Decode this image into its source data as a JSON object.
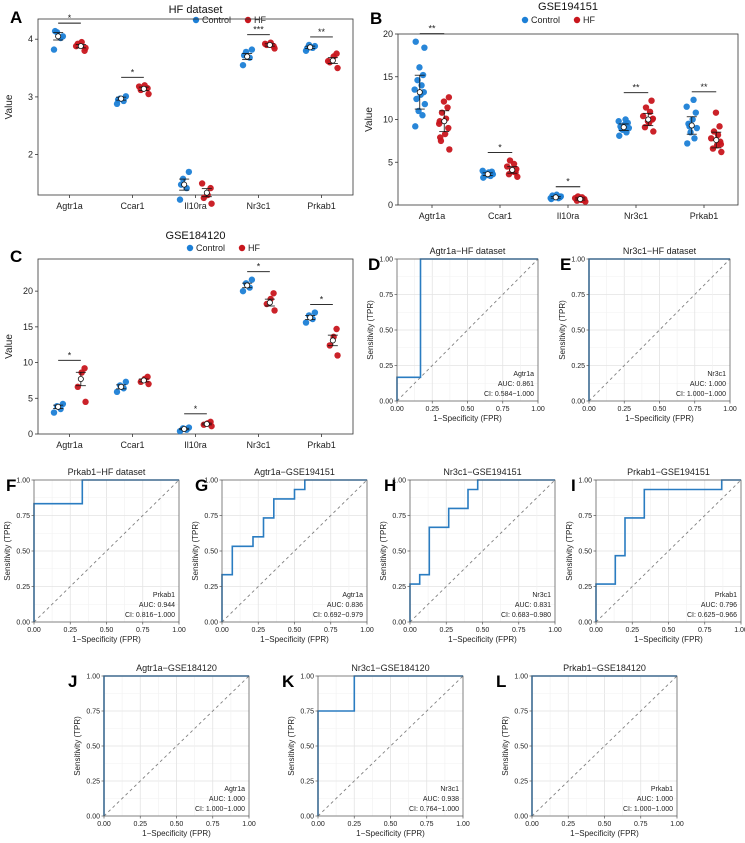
{
  "colors": {
    "control": "#1c7fd6",
    "hf": "#c8161d",
    "roc": "#2a7cc1",
    "diag": "#808080"
  },
  "chart_data": [
    {
      "id": "A",
      "type": "scatter",
      "title": "HF dataset",
      "legend": {
        "control": "Control",
        "hf": "HF"
      },
      "ylabel": "Value",
      "ylim": [
        1.3,
        4.35
      ],
      "yticks": [
        2,
        3,
        4
      ],
      "categories": [
        "Agtr1a",
        "Ccar1",
        "Il10ra",
        "Nr3c1",
        "Prkab1"
      ],
      "series": [
        {
          "name": "Control",
          "points": [
            [
              3.82,
              4.02,
              4.12,
              4.05,
              4.14
            ],
            [
              2.88,
              2.93,
              2.97,
              3.01,
              2.95
            ],
            [
              1.22,
              1.42,
              1.58,
              1.7,
              1.48
            ],
            [
              3.55,
              3.68,
              3.78,
              3.82,
              3.72
            ],
            [
              3.8,
              3.85,
              3.9,
              3.88,
              3.84
            ]
          ],
          "mean": [
            4.05,
            2.97,
            1.48,
            3.7,
            3.86
          ]
        },
        {
          "name": "HF",
          "points": [
            [
              3.85,
              3.92,
              3.95,
              3.8,
              3.88
            ],
            [
              3.05,
              3.12,
              3.2,
              3.15,
              3.18
            ],
            [
              1.15,
              1.25,
              1.3,
              1.42,
              1.5
            ],
            [
              3.84,
              3.9,
              3.94,
              3.88,
              3.92
            ],
            [
              3.5,
              3.6,
              3.7,
              3.75,
              3.62
            ]
          ],
          "mean": [
            3.88,
            3.14,
            1.34,
            3.9,
            3.63
          ]
        }
      ],
      "significance": [
        "*",
        "*",
        "",
        "***",
        "**"
      ]
    },
    {
      "id": "B",
      "type": "scatter",
      "title": "GSE194151",
      "legend": {
        "control": "Control",
        "hf": "HF"
      },
      "ylabel": "Value",
      "ylim": [
        0,
        20
      ],
      "yticks": [
        0,
        5,
        10,
        15,
        20
      ],
      "categories": [
        "Agtr1a",
        "Ccar1",
        "Il10ra",
        "Nr3c1",
        "Prkab1"
      ],
      "series": [
        {
          "name": "Control",
          "points": [
            [
              9.2,
              10.5,
              11.0,
              11.8,
              12.4,
              12.9,
              13.2,
              13.5,
              14.0,
              14.6,
              15.2,
              16.1,
              18.4,
              19.1
            ],
            [
              3.2,
              3.4,
              3.5,
              3.6,
              3.7,
              3.8,
              3.9,
              4.0
            ],
            [
              0.7,
              0.8,
              0.9,
              1.0,
              1.1,
              1.2,
              0.9,
              0.8
            ],
            [
              8.1,
              8.5,
              8.8,
              9.0,
              9.2,
              9.4,
              9.6,
              9.8,
              10.0,
              8.9
            ],
            [
              7.2,
              7.8,
              8.5,
              9.0,
              9.5,
              10.0,
              10.8,
              11.5,
              12.3,
              9.2
            ]
          ],
          "mean": [
            13.2,
            3.6,
            0.9,
            9.1,
            9.3
          ]
        },
        {
          "name": "HF",
          "points": [
            [
              6.5,
              7.5,
              8.3,
              9.0,
              9.5,
              10.1,
              10.8,
              11.4,
              12.1,
              12.6,
              7.9,
              9.8
            ],
            [
              3.3,
              3.6,
              3.9,
              4.2,
              4.5,
              4.8,
              5.2,
              3.8,
              4.1
            ],
            [
              0.4,
              0.5,
              0.6,
              0.7,
              0.8,
              0.9,
              1.0,
              0.6
            ],
            [
              8.6,
              9.1,
              9.6,
              10.0,
              10.4,
              10.9,
              11.4,
              12.2,
              9.8,
              10.1
            ],
            [
              6.2,
              6.6,
              7.0,
              7.4,
              7.8,
              8.2,
              8.6,
              9.2,
              10.8,
              7.1
            ]
          ],
          "mean": [
            9.8,
            4.1,
            0.7,
            10.0,
            7.6
          ]
        }
      ],
      "significance": [
        "**",
        "*",
        "*",
        "**",
        "**"
      ]
    },
    {
      "id": "C",
      "type": "scatter",
      "title": "GSE184120",
      "legend": {
        "control": "Control",
        "hf": "HF"
      },
      "ylabel": "Value",
      "ylim": [
        0,
        24.5
      ],
      "yticks": [
        0,
        5,
        10,
        15,
        20
      ],
      "categories": [
        "Agtr1a",
        "Ccar1",
        "Il10ra",
        "Nr3c1",
        "Prkab1"
      ],
      "series": [
        {
          "name": "Control",
          "points": [
            [
              3.0,
              3.5,
              3.9,
              4.2
            ],
            [
              5.9,
              6.4,
              6.8,
              7.3
            ],
            [
              0.4,
              0.6,
              0.8,
              0.9
            ],
            [
              20.0,
              20.5,
              21.1,
              21.6
            ],
            [
              15.6,
              16.1,
              16.6,
              17.0
            ]
          ],
          "mean": [
            3.8,
            6.6,
            0.7,
            20.8,
            16.3
          ]
        },
        {
          "name": "HF",
          "points": [
            [
              4.5,
              6.6,
              8.6,
              9.2
            ],
            [
              7.0,
              7.3,
              7.7,
              8.0
            ],
            [
              1.1,
              1.3,
              1.5,
              1.7
            ],
            [
              17.3,
              18.2,
              18.9,
              19.7
            ],
            [
              11.0,
              12.4,
              13.6,
              14.7
            ]
          ],
          "mean": [
            7.7,
            7.5,
            1.4,
            18.4,
            13.1
          ]
        }
      ],
      "significance": [
        "*",
        "",
        "*",
        "*",
        "*"
      ]
    },
    {
      "id": "D",
      "type": "line",
      "title": "Agtr1a−HF dataset",
      "xlabel": "1−Specificity (FPR)",
      "ylabel": "Sensitivity (TPR)",
      "xlim": [
        0,
        1
      ],
      "ylim": [
        0,
        1
      ],
      "ticks": [
        "0.00",
        "0.25",
        "0.50",
        "0.75",
        "1.00"
      ],
      "gene": "Agtr1a",
      "auc": "AUC: 0.861",
      "ci": "CI: 0.584−1.000",
      "x": [
        0,
        0,
        0.167,
        0.167,
        1
      ],
      "y": [
        0,
        0.167,
        0.167,
        1,
        1
      ]
    },
    {
      "id": "E",
      "type": "line",
      "title": "Nr3c1−HF dataset",
      "xlabel": "1−Specificity (FPR)",
      "ylabel": "Sensitivity (TPR)",
      "xlim": [
        0,
        1
      ],
      "ylim": [
        0,
        1
      ],
      "ticks": [
        "0.00",
        "0.25",
        "0.50",
        "0.75",
        "1.00"
      ],
      "gene": "Nr3c1",
      "auc": "AUC: 1.000",
      "ci": "CI: 1.000−1.000",
      "x": [
        0,
        0,
        1
      ],
      "y": [
        0,
        1,
        1
      ]
    },
    {
      "id": "F",
      "type": "line",
      "title": "Prkab1−HF dataset",
      "xlabel": "1−Specificity (FPR)",
      "ylabel": "Sensitivity (TPR)",
      "xlim": [
        0,
        1
      ],
      "ylim": [
        0,
        1
      ],
      "ticks": [
        "0.00",
        "0.25",
        "0.50",
        "0.75",
        "1.00"
      ],
      "gene": "Prkab1",
      "auc": "AUC: 0.944",
      "ci": "CI: 0.816−1.000",
      "x": [
        0,
        0,
        0.333,
        0.333,
        1
      ],
      "y": [
        0,
        0.833,
        0.833,
        1,
        1
      ]
    },
    {
      "id": "G",
      "type": "line",
      "title": "Agtr1a−GSE194151",
      "xlabel": "1−Specificity (FPR)",
      "ylabel": "Sensitivity (TPR)",
      "xlim": [
        0,
        1
      ],
      "ylim": [
        0,
        1
      ],
      "ticks": [
        "0.00",
        "0.25",
        "0.50",
        "0.75",
        "1.00"
      ],
      "gene": "Agtr1a",
      "auc": "AUC: 0.836",
      "ci": "CI: 0.692−0.979",
      "x": [
        0,
        0,
        0.071,
        0.071,
        0.214,
        0.214,
        0.286,
        0.286,
        0.357,
        0.357,
        0.5,
        0.5,
        0.571,
        0.571,
        1
      ],
      "y": [
        0,
        0.333,
        0.333,
        0.533,
        0.533,
        0.6,
        0.6,
        0.733,
        0.733,
        0.867,
        0.867,
        0.933,
        0.933,
        1,
        1
      ]
    },
    {
      "id": "H",
      "type": "line",
      "title": "Nr3c1−GSE194151",
      "xlabel": "1−Specificity (FPR)",
      "ylabel": "Sensitivity (TPR)",
      "xlim": [
        0,
        1
      ],
      "ylim": [
        0,
        1
      ],
      "ticks": [
        "0.00",
        "0.25",
        "0.50",
        "0.75",
        "1.00"
      ],
      "gene": "Nr3c1",
      "auc": "AUC: 0.831",
      "ci": "CI: 0.683−0.980",
      "x": [
        0,
        0,
        0.067,
        0.067,
        0.133,
        0.133,
        0.267,
        0.267,
        0.4,
        0.4,
        0.467,
        0.467,
        1
      ],
      "y": [
        0,
        0.267,
        0.267,
        0.333,
        0.333,
        0.667,
        0.667,
        0.8,
        0.8,
        0.933,
        0.933,
        1,
        1
      ]
    },
    {
      "id": "I",
      "type": "line",
      "title": "Prkab1−GSE194151",
      "xlabel": "1−Specificity (FPR)",
      "ylabel": "Sensitivity (TPR)",
      "xlim": [
        0,
        1
      ],
      "ylim": [
        0,
        1
      ],
      "ticks": [
        "0.00",
        "0.25",
        "0.50",
        "0.75",
        "1.00"
      ],
      "gene": "Prkab1",
      "auc": "AUC: 0.796",
      "ci": "CI: 0.625−0.966",
      "x": [
        0,
        0,
        0.133,
        0.133,
        0.2,
        0.2,
        0.333,
        0.333,
        0.867,
        0.867,
        1
      ],
      "y": [
        0,
        0.267,
        0.267,
        0.467,
        0.467,
        0.733,
        0.733,
        0.933,
        0.933,
        1,
        1
      ]
    },
    {
      "id": "J",
      "type": "line",
      "title": "Agtr1a−GSE184120",
      "xlabel": "1−Specificity (FPR)",
      "ylabel": "Sensitivity (TPR)",
      "xlim": [
        0,
        1
      ],
      "ylim": [
        0,
        1
      ],
      "ticks": [
        "0.00",
        "0.25",
        "0.50",
        "0.75",
        "1.00"
      ],
      "gene": "Agtr1a",
      "auc": "AUC: 1.000",
      "ci": "CI: 1.000−1.000",
      "x": [
        0,
        0,
        1
      ],
      "y": [
        0,
        1,
        1
      ]
    },
    {
      "id": "K",
      "type": "line",
      "title": "Nr3c1−GSE184120",
      "xlabel": "1−Specificity (FPR)",
      "ylabel": "Sensitivity (TPR)",
      "xlim": [
        0,
        1
      ],
      "ylim": [
        0,
        1
      ],
      "ticks": [
        "0.00",
        "0.25",
        "0.50",
        "0.75",
        "1.00"
      ],
      "gene": "Nr3c1",
      "auc": "AUC: 0.938",
      "ci": "CI: 0.764−1.000",
      "x": [
        0,
        0,
        0.25,
        0.25,
        1
      ],
      "y": [
        0,
        0.75,
        0.75,
        1,
        1
      ]
    },
    {
      "id": "L",
      "type": "line",
      "title": "Prkab1−GSE184120",
      "xlabel": "1−Specificity (FPR)",
      "ylabel": "Sensitivity (TPR)",
      "xlim": [
        0,
        1
      ],
      "ylim": [
        0,
        1
      ],
      "ticks": [
        "0.00",
        "0.25",
        "0.50",
        "0.75",
        "1.00"
      ],
      "gene": "Prkab1",
      "auc": "AUC: 1.000",
      "ci": "CI: 1.000−1.000",
      "x": [
        0,
        0,
        1
      ],
      "y": [
        0,
        1,
        1
      ]
    }
  ]
}
